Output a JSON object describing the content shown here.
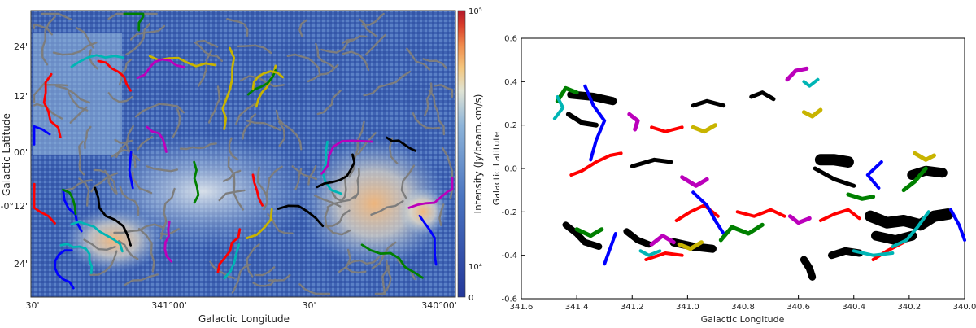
{
  "chart_data": [
    {
      "type": "heatmap",
      "xlabel": "Galactic Longitude",
      "ylabel": "Galactic Latitude",
      "x_ticks": [
        "30'",
        "341°00'",
        "30'",
        "340°00'"
      ],
      "y_ticks": [
        "24'",
        "12'",
        "00'",
        "-0°12'",
        "24'"
      ],
      "colorbar": {
        "label": "Intensity (Jy/beam.km/s)",
        "ticks": [
          "10⁵",
          "10⁴",
          "0"
        ],
        "colors": [
          "#24389a",
          "#4a74c0",
          "#8db4d9",
          "#dfe3d4",
          "#f4c77e",
          "#ef8a4c",
          "#d83c2a",
          "#b3182a"
        ]
      },
      "filament_colors": [
        "#7d7d7d",
        "#ff0000",
        "#0000ff",
        "#008000",
        "#00b5b5",
        "#c8b400",
        "#bb00bb",
        "#000000"
      ]
    },
    {
      "type": "scatter",
      "xlabel": "Galactic Longitude",
      "ylabel": "Galactic Latitute",
      "xlim": [
        341.6,
        340.0
      ],
      "ylim": [
        -0.6,
        0.6
      ],
      "x_ticks": [
        "341.6",
        "341.4",
        "341.2",
        "341.0",
        "340.8",
        "340.6",
        "340.4",
        "340.2",
        "340.0"
      ],
      "y_ticks": [
        "-0.6",
        "-0.4",
        "-0.2",
        "0.0",
        "0.2",
        "0.4",
        "0.6"
      ],
      "grid": false,
      "series_colors": [
        "#000000",
        "#ff0000",
        "#0000ff",
        "#008000",
        "#00b5b5",
        "#c8b400",
        "#bb00bb"
      ],
      "filaments": [
        {
          "color": "#000000",
          "width": 10,
          "points": [
            [
              341.42,
              0.34
            ],
            [
              341.34,
              0.33
            ],
            [
              341.27,
              0.31
            ]
          ]
        },
        {
          "color": "#000000",
          "width": 6,
          "points": [
            [
              341.43,
              0.25
            ],
            [
              341.38,
              0.21
            ],
            [
              341.33,
              0.2
            ]
          ]
        },
        {
          "color": "#000000",
          "width": 5,
          "points": [
            [
              340.98,
              0.29
            ],
            [
              340.93,
              0.31
            ],
            [
              340.87,
              0.29
            ]
          ]
        },
        {
          "color": "#000000",
          "width": 5,
          "points": [
            [
              340.77,
              0.33
            ],
            [
              340.73,
              0.35
            ],
            [
              340.69,
              0.32
            ]
          ]
        },
        {
          "color": "#000000",
          "width": 5,
          "points": [
            [
              341.2,
              0.01
            ],
            [
              341.12,
              0.04
            ],
            [
              341.06,
              0.03
            ]
          ]
        },
        {
          "color": "#000000",
          "width": 14,
          "points": [
            [
              340.52,
              0.04
            ],
            [
              340.47,
              0.04
            ],
            [
              340.42,
              0.03
            ]
          ]
        },
        {
          "color": "#000000",
          "width": 5,
          "points": [
            [
              340.54,
              -0.0
            ],
            [
              340.47,
              -0.05
            ],
            [
              340.4,
              -0.08
            ]
          ]
        },
        {
          "color": "#000000",
          "width": 8,
          "points": [
            [
              341.44,
              -0.26
            ],
            [
              341.4,
              -0.3
            ],
            [
              341.37,
              -0.34
            ],
            [
              341.32,
              -0.36
            ]
          ]
        },
        {
          "color": "#000000",
          "width": 8,
          "points": [
            [
              341.22,
              -0.29
            ],
            [
              341.18,
              -0.33
            ],
            [
              341.14,
              -0.35
            ]
          ]
        },
        {
          "color": "#000000",
          "width": 10,
          "points": [
            [
              341.05,
              -0.34
            ],
            [
              340.98,
              -0.36
            ],
            [
              340.91,
              -0.37
            ]
          ]
        },
        {
          "color": "#000000",
          "width": 9,
          "points": [
            [
              340.58,
              -0.42
            ],
            [
              340.56,
              -0.46
            ],
            [
              340.55,
              -0.5
            ]
          ]
        },
        {
          "color": "#000000",
          "width": 9,
          "points": [
            [
              340.48,
              -0.4
            ],
            [
              340.43,
              -0.38
            ],
            [
              340.38,
              -0.39
            ]
          ]
        },
        {
          "color": "#000000",
          "width": 14,
          "points": [
            [
              340.34,
              -0.22
            ],
            [
              340.28,
              -0.25
            ],
            [
              340.22,
              -0.24
            ],
            [
              340.16,
              -0.26
            ],
            [
              340.11,
              -0.22
            ],
            [
              340.06,
              -0.21
            ]
          ]
        },
        {
          "color": "#000000",
          "width": 12,
          "points": [
            [
              340.32,
              -0.31
            ],
            [
              340.25,
              -0.33
            ],
            [
              340.19,
              -0.31
            ]
          ]
        },
        {
          "color": "#000000",
          "width": 12,
          "points": [
            [
              340.19,
              -0.03
            ],
            [
              340.14,
              -0.01
            ],
            [
              340.08,
              -0.02
            ]
          ]
        },
        {
          "color": "#ff0000",
          "width": 4,
          "points": [
            [
              341.42,
              -0.03
            ],
            [
              341.38,
              -0.01
            ],
            [
              341.33,
              0.03
            ],
            [
              341.28,
              0.06
            ],
            [
              341.24,
              0.07
            ]
          ]
        },
        {
          "color": "#ff0000",
          "width": 4,
          "points": [
            [
              341.04,
              -0.24
            ],
            [
              340.99,
              -0.2
            ],
            [
              340.94,
              -0.17
            ],
            [
              340.89,
              -0.22
            ]
          ]
        },
        {
          "color": "#ff0000",
          "width": 4,
          "points": [
            [
              340.82,
              -0.2
            ],
            [
              340.76,
              -0.22
            ],
            [
              340.7,
              -0.19
            ],
            [
              340.65,
              -0.22
            ]
          ]
        },
        {
          "color": "#ff0000",
          "width": 4,
          "points": [
            [
              340.52,
              -0.24
            ],
            [
              340.47,
              -0.21
            ],
            [
              340.42,
              -0.19
            ],
            [
              340.38,
              -0.23
            ]
          ]
        },
        {
          "color": "#ff0000",
          "width": 4,
          "points": [
            [
              341.15,
              -0.42
            ],
            [
              341.08,
              -0.39
            ],
            [
              341.02,
              -0.4
            ]
          ]
        },
        {
          "color": "#ff0000",
          "width": 4,
          "points": [
            [
              340.22,
              -0.34
            ],
            [
              340.28,
              -0.38
            ],
            [
              340.33,
              -0.42
            ]
          ]
        },
        {
          "color": "#ff0000",
          "width": 4,
          "points": [
            [
              341.13,
              0.19
            ],
            [
              341.08,
              0.17
            ],
            [
              341.02,
              0.19
            ]
          ]
        },
        {
          "color": "#0000ff",
          "width": 4,
          "points": [
            [
              341.37,
              0.38
            ],
            [
              341.34,
              0.29
            ],
            [
              341.3,
              0.22
            ],
            [
              341.33,
              0.13
            ],
            [
              341.35,
              0.04
            ]
          ]
        },
        {
          "color": "#0000ff",
          "width": 4,
          "points": [
            [
              341.26,
              -0.3
            ],
            [
              341.28,
              -0.37
            ],
            [
              341.3,
              -0.44
            ]
          ]
        },
        {
          "color": "#0000ff",
          "width": 4,
          "points": [
            [
              340.98,
              -0.11
            ],
            [
              340.93,
              -0.17
            ],
            [
              340.9,
              -0.24
            ],
            [
              340.87,
              -0.3
            ]
          ]
        },
        {
          "color": "#0000ff",
          "width": 4,
          "points": [
            [
              340.3,
              0.03
            ],
            [
              340.35,
              -0.03
            ],
            [
              340.31,
              -0.09
            ]
          ]
        },
        {
          "color": "#0000ff",
          "width": 4,
          "points": [
            [
              340.05,
              -0.19
            ],
            [
              340.02,
              -0.26
            ],
            [
              340.0,
              -0.33
            ]
          ]
        },
        {
          "color": "#008000",
          "width": 5,
          "points": [
            [
              341.47,
              0.31
            ],
            [
              341.44,
              0.37
            ],
            [
              341.4,
              0.35
            ]
          ]
        },
        {
          "color": "#008000",
          "width": 5,
          "points": [
            [
              340.88,
              -0.33
            ],
            [
              340.84,
              -0.27
            ],
            [
              340.78,
              -0.3
            ],
            [
              340.73,
              -0.26
            ]
          ]
        },
        {
          "color": "#008000",
          "width": 5,
          "points": [
            [
              340.42,
              -0.12
            ],
            [
              340.37,
              -0.14
            ],
            [
              340.33,
              -0.13
            ]
          ]
        },
        {
          "color": "#008000",
          "width": 5,
          "points": [
            [
              340.14,
              0.0
            ],
            [
              340.18,
              -0.06
            ],
            [
              340.22,
              -0.1
            ]
          ]
        },
        {
          "color": "#008000",
          "width": 5,
          "points": [
            [
              341.4,
              -0.28
            ],
            [
              341.35,
              -0.31
            ],
            [
              341.31,
              -0.28
            ]
          ]
        },
        {
          "color": "#00b5b5",
          "width": 4,
          "points": [
            [
              341.48,
              0.23
            ],
            [
              341.45,
              0.28
            ],
            [
              341.47,
              0.33
            ]
          ]
        },
        {
          "color": "#00b5b5",
          "width": 4,
          "points": [
            [
              340.13,
              -0.2
            ],
            [
              340.17,
              -0.27
            ],
            [
              340.21,
              -0.33
            ],
            [
              340.26,
              -0.36
            ]
          ]
        },
        {
          "color": "#00b5b5",
          "width": 4,
          "points": [
            [
              340.4,
              -0.38
            ],
            [
              340.33,
              -0.4
            ],
            [
              340.26,
              -0.39
            ]
          ]
        },
        {
          "color": "#00b5b5",
          "width": 4,
          "points": [
            [
              341.17,
              -0.38
            ],
            [
              341.14,
              -0.4
            ],
            [
              341.1,
              -0.38
            ]
          ]
        },
        {
          "color": "#00b5b5",
          "width": 4,
          "points": [
            [
              340.58,
              0.4
            ],
            [
              340.56,
              0.38
            ],
            [
              340.53,
              0.41
            ]
          ]
        },
        {
          "color": "#c8b400",
          "width": 5,
          "points": [
            [
              340.98,
              0.19
            ],
            [
              340.94,
              0.17
            ],
            [
              340.9,
              0.2
            ]
          ]
        },
        {
          "color": "#c8b400",
          "width": 5,
          "points": [
            [
              340.58,
              0.26
            ],
            [
              340.55,
              0.24
            ],
            [
              340.52,
              0.27
            ]
          ]
        },
        {
          "color": "#c8b400",
          "width": 5,
          "points": [
            [
              340.18,
              0.07
            ],
            [
              340.14,
              0.04
            ],
            [
              340.11,
              0.06
            ]
          ]
        },
        {
          "color": "#c8b400",
          "width": 5,
          "points": [
            [
              341.03,
              -0.35
            ],
            [
              340.99,
              -0.37
            ],
            [
              340.95,
              -0.34
            ]
          ]
        },
        {
          "color": "#bb00bb",
          "width": 5,
          "points": [
            [
              341.21,
              0.25
            ],
            [
              341.18,
              0.22
            ],
            [
              341.19,
              0.18
            ]
          ]
        },
        {
          "color": "#bb00bb",
          "width": 5,
          "points": [
            [
              340.64,
              0.41
            ],
            [
              340.61,
              0.45
            ],
            [
              340.57,
              0.46
            ]
          ]
        },
        {
          "color": "#bb00bb",
          "width": 5,
          "points": [
            [
              341.13,
              -0.35
            ],
            [
              341.09,
              -0.31
            ],
            [
              341.05,
              -0.34
            ]
          ]
        },
        {
          "color": "#bb00bb",
          "width": 5,
          "points": [
            [
              341.02,
              -0.04
            ],
            [
              340.97,
              -0.08
            ],
            [
              340.93,
              -0.05
            ]
          ]
        },
        {
          "color": "#bb00bb",
          "width": 5,
          "points": [
            [
              340.63,
              -0.22
            ],
            [
              340.6,
              -0.25
            ],
            [
              340.56,
              -0.23
            ]
          ]
        }
      ]
    }
  ]
}
